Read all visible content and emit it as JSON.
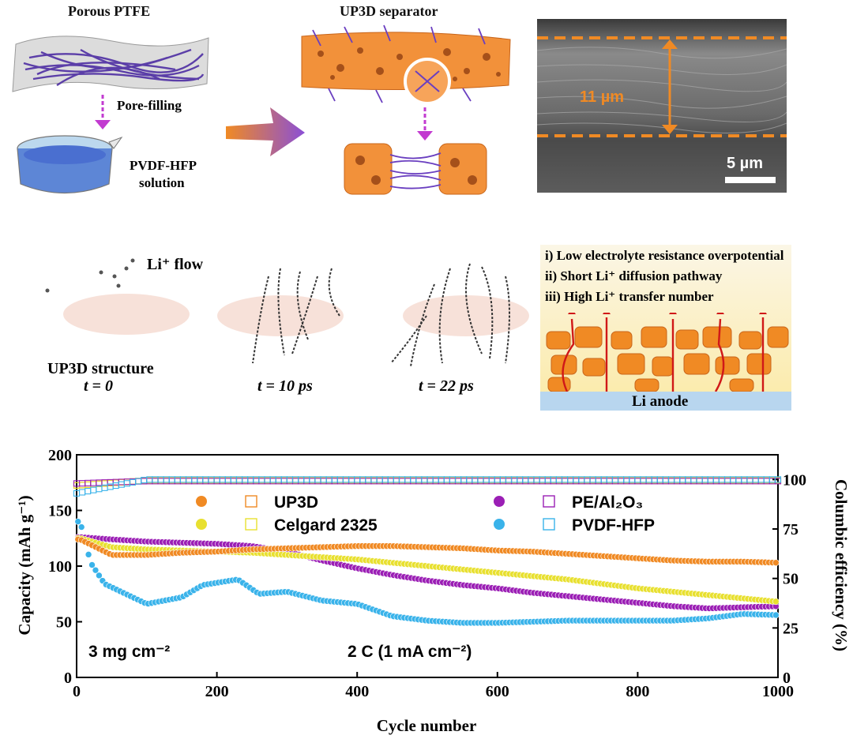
{
  "panel_a": {
    "porous_ptfe": "Porous PTFE",
    "pore_filling": "Pore-filling",
    "pvdf_line1": "PVDF-HFP",
    "pvdf_line2": "solution",
    "up3d_separator": "UP3D separator",
    "thickness": "11 µm",
    "scalebar": "5 µm"
  },
  "panel_b": {
    "li_flow": "Li⁺ flow",
    "structure_label": "UP3D structure",
    "t0": "t = 0",
    "t10": "t = 10 ps",
    "t22": "t = 22 ps",
    "benefit_1": "i) Low electrolyte resistance overpotential",
    "benefit_2": "ii) Short Li⁺ diffusion pathway",
    "benefit_3": "iii) High Li⁺ transfer number",
    "anode": "Li anode"
  },
  "chart_data": {
    "type": "scatter",
    "xlabel": "Cycle number",
    "ylabel": "Capacity (mAh g⁻¹)",
    "y2label": "Columbic efficiency (%)",
    "xlim": [
      0,
      1000
    ],
    "ylim": [
      0,
      200
    ],
    "y2lim": [
      0,
      112.5
    ],
    "xticks": [
      0,
      200,
      400,
      600,
      800,
      1000
    ],
    "yticks": [
      0,
      50,
      100,
      150,
      200
    ],
    "y2ticks": [
      0,
      25,
      50,
      75,
      100
    ],
    "annotation_loading": "3 mg cm⁻²",
    "annotation_rate": "2 C (1 mA cm⁻²)",
    "legend_placement": "center",
    "series": [
      {
        "name": "UP3D",
        "color": "#f08a24",
        "capacity": [
          [
            5,
            124
          ],
          [
            50,
            110
          ],
          [
            100,
            110
          ],
          [
            150,
            112
          ],
          [
            200,
            113
          ],
          [
            250,
            115
          ],
          [
            300,
            116
          ],
          [
            350,
            117
          ],
          [
            400,
            118
          ],
          [
            450,
            118
          ],
          [
            500,
            117
          ],
          [
            550,
            116
          ],
          [
            600,
            114
          ],
          [
            650,
            113
          ],
          [
            700,
            111
          ],
          [
            750,
            109
          ],
          [
            800,
            107
          ],
          [
            850,
            105
          ],
          [
            900,
            104
          ],
          [
            950,
            104
          ],
          [
            1000,
            103
          ]
        ],
        "efficiency": [
          [
            0,
            97
          ],
          [
            100,
            99.5
          ],
          [
            500,
            99.5
          ],
          [
            1000,
            99.5
          ]
        ]
      },
      {
        "name": "Celgard 2325",
        "color": "#e8e030",
        "capacity": [
          [
            5,
            125
          ],
          [
            50,
            117
          ],
          [
            100,
            115
          ],
          [
            150,
            114
          ],
          [
            200,
            113
          ],
          [
            250,
            112
          ],
          [
            300,
            110
          ],
          [
            350,
            108
          ],
          [
            400,
            106
          ],
          [
            450,
            103
          ],
          [
            500,
            100
          ],
          [
            550,
            97
          ],
          [
            600,
            94
          ],
          [
            650,
            91
          ],
          [
            700,
            88
          ],
          [
            750,
            84
          ],
          [
            800,
            80
          ],
          [
            850,
            77
          ],
          [
            900,
            74
          ],
          [
            950,
            71
          ],
          [
            1000,
            68
          ]
        ],
        "efficiency": [
          [
            0,
            97
          ],
          [
            100,
            99.5
          ],
          [
            500,
            99.5
          ],
          [
            1000,
            99.5
          ]
        ]
      },
      {
        "name": "PE/Al₂O₃",
        "color": "#9b1fb5",
        "capacity": [
          [
            5,
            126
          ],
          [
            50,
            124
          ],
          [
            100,
            122
          ],
          [
            150,
            121
          ],
          [
            200,
            120
          ],
          [
            250,
            118
          ],
          [
            300,
            113
          ],
          [
            350,
            105
          ],
          [
            400,
            98
          ],
          [
            450,
            92
          ],
          [
            500,
            87
          ],
          [
            550,
            83
          ],
          [
            600,
            80
          ],
          [
            650,
            76
          ],
          [
            700,
            73
          ],
          [
            750,
            70
          ],
          [
            800,
            67
          ],
          [
            850,
            64
          ],
          [
            900,
            62
          ],
          [
            950,
            63
          ],
          [
            1000,
            64
          ]
        ],
        "efficiency": [
          [
            0,
            98
          ],
          [
            100,
            99.2
          ],
          [
            500,
            99.2
          ],
          [
            1000,
            99.2
          ]
        ]
      },
      {
        "name": "PVDF-HFP",
        "color": "#3ab3ea",
        "capacity": [
          [
            5,
            140
          ],
          [
            20,
            103
          ],
          [
            40,
            84
          ],
          [
            70,
            75
          ],
          [
            100,
            66
          ],
          [
            150,
            72
          ],
          [
            180,
            83
          ],
          [
            230,
            88
          ],
          [
            260,
            75
          ],
          [
            300,
            77
          ],
          [
            350,
            69
          ],
          [
            400,
            66
          ],
          [
            450,
            55
          ],
          [
            500,
            51
          ],
          [
            550,
            49
          ],
          [
            600,
            49
          ],
          [
            650,
            50
          ],
          [
            700,
            51
          ],
          [
            750,
            51
          ],
          [
            800,
            51
          ],
          [
            850,
            51
          ],
          [
            900,
            53
          ],
          [
            950,
            57
          ],
          [
            1000,
            56
          ]
        ],
        "efficiency": [
          [
            0,
            93
          ],
          [
            100,
            100
          ],
          [
            500,
            100
          ],
          [
            1000,
            100
          ]
        ]
      }
    ]
  }
}
